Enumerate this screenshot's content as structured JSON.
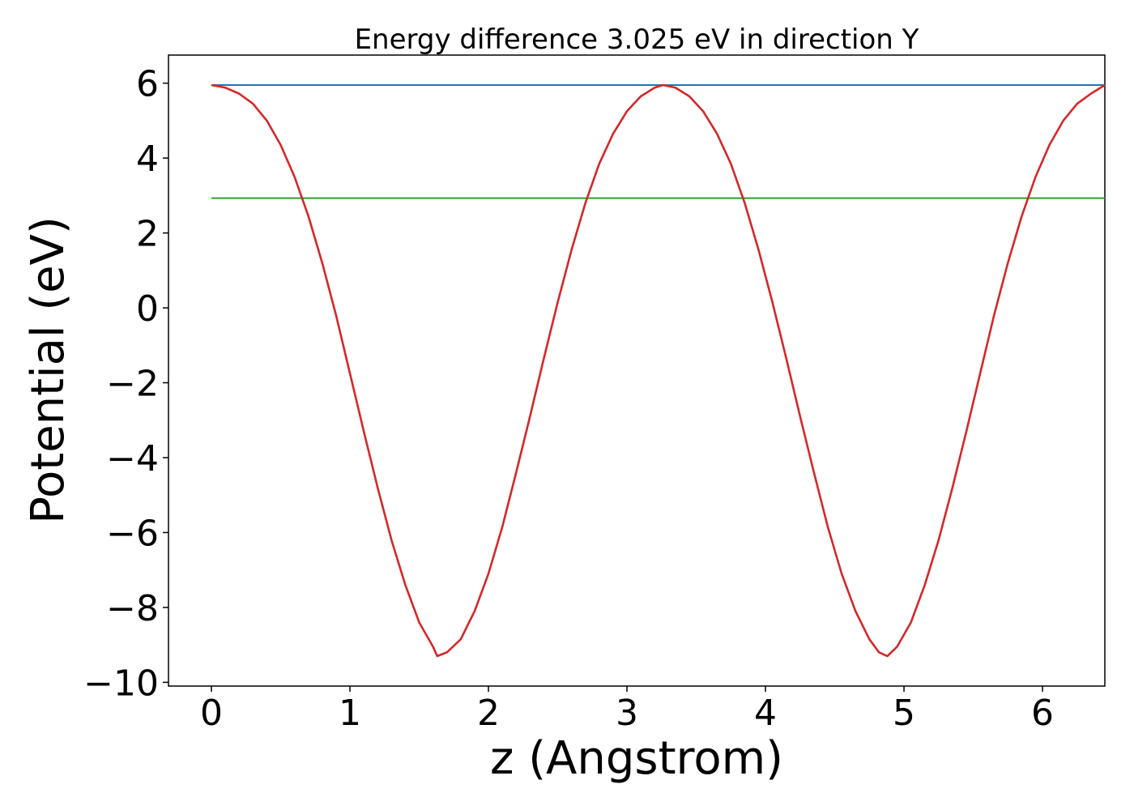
{
  "chart_data": {
    "type": "line",
    "title": "Energy difference 3.025 eV in direction Y",
    "xlabel": "z (Angstrom)",
    "ylabel": "Potential (eV)",
    "xlim": [
      -0.31,
      6.45
    ],
    "ylim": [
      -10.1,
      6.75
    ],
    "xticks": [
      0,
      1,
      2,
      3,
      4,
      5,
      6
    ],
    "yticks": [
      -10,
      -8,
      -6,
      -4,
      -2,
      0,
      2,
      4,
      6
    ],
    "xtick_labels": [
      "0",
      "1",
      "2",
      "3",
      "4",
      "5",
      "6"
    ],
    "ytick_labels": [
      "−10",
      "−8",
      "−6",
      "−4",
      "−2",
      "0",
      "2",
      "4",
      "6"
    ],
    "grid": false,
    "series": [
      {
        "color": "#1f77b4",
        "points": [
          [
            0,
            5.95
          ],
          [
            6.45,
            5.95
          ]
        ]
      },
      {
        "color": "#2ca02c",
        "points": [
          [
            0,
            2.93
          ],
          [
            6.45,
            2.93
          ]
        ]
      },
      {
        "color": "#d62728",
        "points": [
          [
            0.0,
            5.95
          ],
          [
            0.1,
            5.88
          ],
          [
            0.2,
            5.72
          ],
          [
            0.3,
            5.45
          ],
          [
            0.4,
            5.0
          ],
          [
            0.5,
            4.35
          ],
          [
            0.6,
            3.5
          ],
          [
            0.7,
            2.45
          ],
          [
            0.8,
            1.2
          ],
          [
            0.9,
            -0.2
          ],
          [
            1.0,
            -1.75
          ],
          [
            1.1,
            -3.3
          ],
          [
            1.2,
            -4.8
          ],
          [
            1.3,
            -6.2
          ],
          [
            1.4,
            -7.4
          ],
          [
            1.5,
            -8.4
          ],
          [
            1.6,
            -9.05
          ],
          [
            1.63,
            -9.3
          ],
          [
            1.7,
            -9.2
          ],
          [
            1.8,
            -8.85
          ],
          [
            1.9,
            -8.1
          ],
          [
            2.0,
            -7.1
          ],
          [
            2.1,
            -5.85
          ],
          [
            2.2,
            -4.4
          ],
          [
            2.3,
            -2.9
          ],
          [
            2.4,
            -1.35
          ],
          [
            2.5,
            0.15
          ],
          [
            2.6,
            1.55
          ],
          [
            2.7,
            2.8
          ],
          [
            2.8,
            3.85
          ],
          [
            2.9,
            4.65
          ],
          [
            3.0,
            5.25
          ],
          [
            3.1,
            5.65
          ],
          [
            3.2,
            5.88
          ],
          [
            3.26,
            5.95
          ],
          [
            3.35,
            5.88
          ],
          [
            3.45,
            5.65
          ],
          [
            3.55,
            5.25
          ],
          [
            3.65,
            4.65
          ],
          [
            3.75,
            3.85
          ],
          [
            3.85,
            2.8
          ],
          [
            3.95,
            1.55
          ],
          [
            4.05,
            0.15
          ],
          [
            4.15,
            -1.35
          ],
          [
            4.25,
            -2.9
          ],
          [
            4.35,
            -4.4
          ],
          [
            4.45,
            -5.85
          ],
          [
            4.55,
            -7.1
          ],
          [
            4.65,
            -8.1
          ],
          [
            4.75,
            -8.85
          ],
          [
            4.82,
            -9.2
          ],
          [
            4.88,
            -9.3
          ],
          [
            4.95,
            -9.05
          ],
          [
            5.05,
            -8.4
          ],
          [
            5.15,
            -7.4
          ],
          [
            5.25,
            -6.2
          ],
          [
            5.35,
            -4.8
          ],
          [
            5.45,
            -3.3
          ],
          [
            5.55,
            -1.75
          ],
          [
            5.65,
            -0.2
          ],
          [
            5.75,
            1.2
          ],
          [
            5.85,
            2.45
          ],
          [
            5.95,
            3.5
          ],
          [
            6.05,
            4.35
          ],
          [
            6.15,
            5.0
          ],
          [
            6.25,
            5.45
          ],
          [
            6.35,
            5.72
          ],
          [
            6.45,
            5.95
          ]
        ]
      }
    ]
  }
}
